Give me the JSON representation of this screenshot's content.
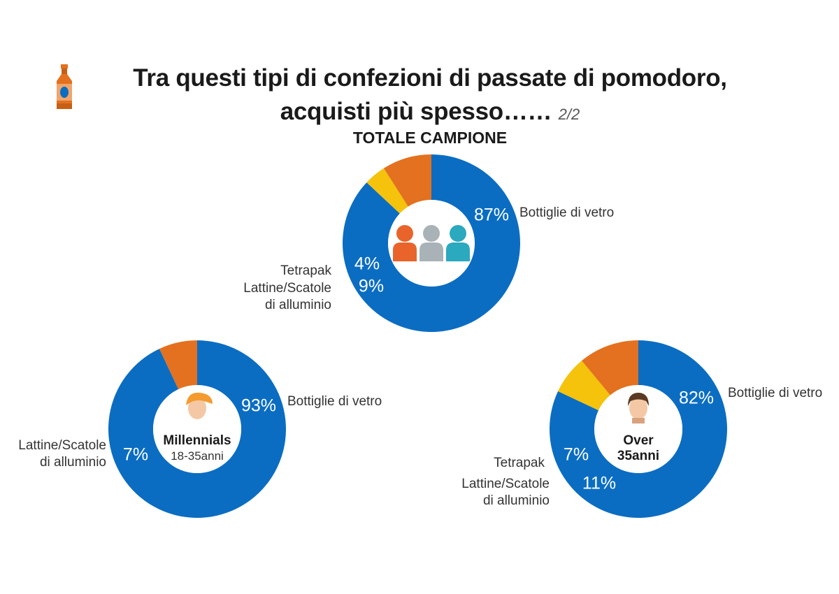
{
  "header": {
    "title_line1": "Tra questi tipi di confezioni di passate di pomodoro,",
    "title_line2": "acquisti più spesso……",
    "page_indicator": "2/2",
    "subtitle": "TOTALE CAMPIONE"
  },
  "colors": {
    "glass": "#0a6dc2",
    "tetrapak": "#f5c20c",
    "cans": "#e3711f"
  },
  "chart_data": [
    {
      "type": "pie",
      "variant": "donut",
      "title": "TOTALE CAMPIONE",
      "center_icon": "three-people-icon",
      "categories": [
        "Bottiglie di vetro",
        "Tetrapak",
        "Lattine/Scatole di alluminio"
      ],
      "values": [
        87,
        4,
        9
      ],
      "value_labels": [
        "87%",
        "4%",
        "9%"
      ],
      "category_labels": [
        [
          "Bottiglie di vetro"
        ],
        [
          "Tetrapak"
        ],
        [
          "Lattine/Scatole",
          "di alluminio"
        ]
      ]
    },
    {
      "type": "pie",
      "variant": "donut",
      "center_icon": "millennial-face-icon",
      "center_text": [
        "Millennials",
        "18-35anni"
      ],
      "categories": [
        "Bottiglie di vetro",
        "Lattine/Scatole di alluminio"
      ],
      "values": [
        93,
        7
      ],
      "value_labels": [
        "93%",
        "7%"
      ],
      "category_labels": [
        [
          "Bottiglie di vetro"
        ],
        [
          "Lattine/Scatole",
          "di alluminio"
        ]
      ]
    },
    {
      "type": "pie",
      "variant": "donut",
      "center_icon": "adult-face-icon",
      "center_text": [
        "Over",
        "35anni"
      ],
      "categories": [
        "Bottiglie di vetro",
        "Tetrapak",
        "Lattine/Scatole di alluminio"
      ],
      "values": [
        82,
        7,
        11
      ],
      "value_labels": [
        "82%",
        "7%",
        "11%"
      ],
      "category_labels": [
        [
          "Bottiglie di vetro"
        ],
        [
          "Tetrapak"
        ],
        [
          "Lattine/Scatole",
          "di alluminio"
        ]
      ]
    }
  ]
}
